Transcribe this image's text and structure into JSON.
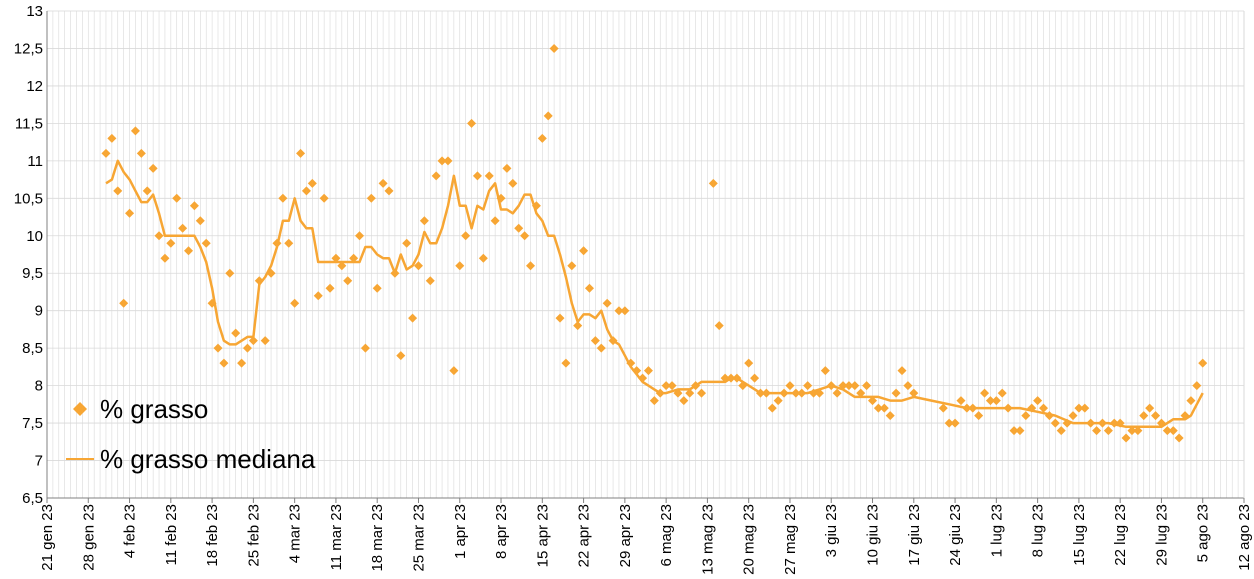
{
  "chart_data": {
    "type": "scatter",
    "title": "",
    "xlabel": "",
    "ylabel": "",
    "ylim": [
      6.5,
      13
    ],
    "xlim": [
      "2023-01-21",
      "2023-08-12"
    ],
    "grid": true,
    "legend_position": "bottom-left",
    "colors": {
      "series": "#F7A634",
      "grid": "#D9D9D9",
      "axis": "#808080"
    },
    "y_ticks": [
      "6,5",
      "7",
      "7,5",
      "8",
      "8,5",
      "9",
      "9,5",
      "10",
      "10,5",
      "11",
      "11,5",
      "12",
      "12,5",
      "13"
    ],
    "x_ticks": [
      {
        "date": "2023-01-21",
        "label": "21 gen 23"
      },
      {
        "date": "2023-01-28",
        "label": "28 gen 23"
      },
      {
        "date": "2023-02-04",
        "label": "4 feb 23"
      },
      {
        "date": "2023-02-11",
        "label": "11 feb 23"
      },
      {
        "date": "2023-02-18",
        "label": "18 feb 23"
      },
      {
        "date": "2023-02-25",
        "label": "25 feb 23"
      },
      {
        "date": "2023-03-04",
        "label": "4 mar 23"
      },
      {
        "date": "2023-03-11",
        "label": "11 mar 23"
      },
      {
        "date": "2023-03-18",
        "label": "18 mar 23"
      },
      {
        "date": "2023-03-25",
        "label": "25 mar 23"
      },
      {
        "date": "2023-04-01",
        "label": "1 apr 23"
      },
      {
        "date": "2023-04-08",
        "label": "8 apr 23"
      },
      {
        "date": "2023-04-15",
        "label": "15 apr 23"
      },
      {
        "date": "2023-04-22",
        "label": "22 apr 23"
      },
      {
        "date": "2023-04-29",
        "label": "29 apr 23"
      },
      {
        "date": "2023-05-06",
        "label": "6 mag 23"
      },
      {
        "date": "2023-05-13",
        "label": "13 mag 23"
      },
      {
        "date": "2023-05-20",
        "label": "20 mag 23"
      },
      {
        "date": "2023-05-27",
        "label": "27 mag 23"
      },
      {
        "date": "2023-06-03",
        "label": "3 giu 23"
      },
      {
        "date": "2023-06-10",
        "label": "10 giu 23"
      },
      {
        "date": "2023-06-17",
        "label": "17 giu 23"
      },
      {
        "date": "2023-06-24",
        "label": "24 giu 23"
      },
      {
        "date": "2023-07-01",
        "label": "1 lug 23"
      },
      {
        "date": "2023-07-08",
        "label": "8 lug 23"
      },
      {
        "date": "2023-07-15",
        "label": "15 lug 23"
      },
      {
        "date": "2023-07-22",
        "label": "22 lug 23"
      },
      {
        "date": "2023-07-29",
        "label": "29 lug 23"
      },
      {
        "date": "2023-08-05",
        "label": "5 ago 23"
      },
      {
        "date": "2023-08-12",
        "label": "12 ago 23"
      }
    ],
    "series": [
      {
        "name": "% grasso",
        "type": "scatter",
        "marker": "diamond",
        "x": [
          "2023-01-31",
          "2023-02-01",
          "2023-02-02",
          "2023-02-03",
          "2023-02-04",
          "2023-02-05",
          "2023-02-06",
          "2023-02-07",
          "2023-02-08",
          "2023-02-09",
          "2023-02-10",
          "2023-02-11",
          "2023-02-12",
          "2023-02-13",
          "2023-02-14",
          "2023-02-15",
          "2023-02-16",
          "2023-02-17",
          "2023-02-18",
          "2023-02-19",
          "2023-02-20",
          "2023-02-21",
          "2023-02-22",
          "2023-02-23",
          "2023-02-24",
          "2023-02-25",
          "2023-02-26",
          "2023-02-27",
          "2023-02-28",
          "2023-03-01",
          "2023-03-02",
          "2023-03-03",
          "2023-03-04",
          "2023-03-05",
          "2023-03-06",
          "2023-03-07",
          "2023-03-08",
          "2023-03-09",
          "2023-03-10",
          "2023-03-11",
          "2023-03-12",
          "2023-03-13",
          "2023-03-14",
          "2023-03-15",
          "2023-03-16",
          "2023-03-17",
          "2023-03-18",
          "2023-03-19",
          "2023-03-20",
          "2023-03-21",
          "2023-03-22",
          "2023-03-23",
          "2023-03-24",
          "2023-03-25",
          "2023-03-26",
          "2023-03-27",
          "2023-03-28",
          "2023-03-29",
          "2023-03-30",
          "2023-03-31",
          "2023-04-01",
          "2023-04-02",
          "2023-04-03",
          "2023-04-04",
          "2023-04-05",
          "2023-04-06",
          "2023-04-07",
          "2023-04-08",
          "2023-04-09",
          "2023-04-10",
          "2023-04-11",
          "2023-04-12",
          "2023-04-13",
          "2023-04-14",
          "2023-04-15",
          "2023-04-16",
          "2023-04-17",
          "2023-04-18",
          "2023-04-19",
          "2023-04-20",
          "2023-04-21",
          "2023-04-22",
          "2023-04-23",
          "2023-04-24",
          "2023-04-25",
          "2023-04-26",
          "2023-04-27",
          "2023-04-28",
          "2023-04-29",
          "2023-04-30",
          "2023-05-01",
          "2023-05-02",
          "2023-05-03",
          "2023-05-04",
          "2023-05-05",
          "2023-05-06",
          "2023-05-07",
          "2023-05-08",
          "2023-05-09",
          "2023-05-10",
          "2023-05-11",
          "2023-05-12",
          "2023-05-14",
          "2023-05-15",
          "2023-05-16",
          "2023-05-17",
          "2023-05-18",
          "2023-05-19",
          "2023-05-20",
          "2023-05-21",
          "2023-05-22",
          "2023-05-23",
          "2023-05-24",
          "2023-05-25",
          "2023-05-26",
          "2023-05-27",
          "2023-05-28",
          "2023-05-29",
          "2023-05-30",
          "2023-05-31",
          "2023-06-01",
          "2023-06-02",
          "2023-06-03",
          "2023-06-04",
          "2023-06-05",
          "2023-06-06",
          "2023-06-07",
          "2023-06-08",
          "2023-06-09",
          "2023-06-10",
          "2023-06-11",
          "2023-06-12",
          "2023-06-13",
          "2023-06-14",
          "2023-06-15",
          "2023-06-16",
          "2023-06-17",
          "2023-06-22",
          "2023-06-23",
          "2023-06-24",
          "2023-06-25",
          "2023-06-26",
          "2023-06-27",
          "2023-06-28",
          "2023-06-29",
          "2023-06-30",
          "2023-07-01",
          "2023-07-02",
          "2023-07-03",
          "2023-07-04",
          "2023-07-05",
          "2023-07-06",
          "2023-07-07",
          "2023-07-08",
          "2023-07-09",
          "2023-07-10",
          "2023-07-11",
          "2023-07-12",
          "2023-07-13",
          "2023-07-14",
          "2023-07-15",
          "2023-07-16",
          "2023-07-17",
          "2023-07-18",
          "2023-07-19",
          "2023-07-20",
          "2023-07-21",
          "2023-07-22",
          "2023-07-23",
          "2023-07-24",
          "2023-07-25",
          "2023-07-26",
          "2023-07-27",
          "2023-07-28",
          "2023-07-29",
          "2023-07-30",
          "2023-07-31",
          "2023-08-01",
          "2023-08-02",
          "2023-08-03",
          "2023-08-04",
          "2023-08-05"
        ],
        "y": [
          11.1,
          11.3,
          10.6,
          9.1,
          10.3,
          11.4,
          11.1,
          10.6,
          10.9,
          10.0,
          9.7,
          9.9,
          10.5,
          10.1,
          9.8,
          10.4,
          10.2,
          9.9,
          9.1,
          8.5,
          8.3,
          9.5,
          8.7,
          8.3,
          8.5,
          8.6,
          9.4,
          8.6,
          9.5,
          9.9,
          10.5,
          9.9,
          9.1,
          11.1,
          10.6,
          10.7,
          9.2,
          10.5,
          9.3,
          9.7,
          9.6,
          9.4,
          9.7,
          10.0,
          8.5,
          10.5,
          9.3,
          10.7,
          10.6,
          9.5,
          8.4,
          9.9,
          8.9,
          9.6,
          10.2,
          9.4,
          10.8,
          11.0,
          11.0,
          8.2,
          9.6,
          10.0,
          11.5,
          10.8,
          9.7,
          10.8,
          10.2,
          10.5,
          10.9,
          10.7,
          10.1,
          10.0,
          9.6,
          10.4,
          11.3,
          11.6,
          12.5,
          8.9,
          8.3,
          9.6,
          8.8,
          9.8,
          9.3,
          8.6,
          8.5,
          9.1,
          8.6,
          9.0,
          9.0,
          8.3,
          8.2,
          8.1,
          8.2,
          7.8,
          7.9,
          8.0,
          8.0,
          7.9,
          7.8,
          7.9,
          8.0,
          7.9,
          10.7,
          8.8,
          8.1,
          8.1,
          8.1,
          8.0,
          8.3,
          8.1,
          7.9,
          7.9,
          7.7,
          7.8,
          7.9,
          8.0,
          7.9,
          7.9,
          8.0,
          7.9,
          7.9,
          8.2,
          8.0,
          7.9,
          8.0,
          8.0,
          8.0,
          7.9,
          8.0,
          7.8,
          7.7,
          7.7,
          7.6,
          7.9,
          8.2,
          8.0,
          7.9,
          7.7,
          7.5,
          7.5,
          7.8,
          7.7,
          7.7,
          7.6,
          7.9,
          7.8,
          7.8,
          7.9,
          7.7,
          7.4,
          7.4,
          7.6,
          7.7,
          7.8,
          7.7,
          7.6,
          7.5,
          7.4,
          7.5,
          7.6,
          7.7,
          7.7,
          7.5,
          7.4,
          7.5,
          7.4,
          7.5,
          7.5,
          7.3,
          7.4,
          7.4,
          7.6,
          7.7,
          7.6,
          7.5,
          7.4,
          7.4,
          7.3,
          7.6,
          7.8,
          8.0,
          8.3
        ]
      },
      {
        "name": "% grasso mediana",
        "type": "line",
        "x": [
          "2023-01-31",
          "2023-02-01",
          "2023-02-02",
          "2023-02-03",
          "2023-02-04",
          "2023-02-05",
          "2023-02-06",
          "2023-02-07",
          "2023-02-08",
          "2023-02-09",
          "2023-02-10",
          "2023-02-11",
          "2023-02-12",
          "2023-02-13",
          "2023-02-14",
          "2023-02-15",
          "2023-02-16",
          "2023-02-17",
          "2023-02-18",
          "2023-02-19",
          "2023-02-20",
          "2023-02-21",
          "2023-02-22",
          "2023-02-23",
          "2023-02-24",
          "2023-02-25",
          "2023-02-26",
          "2023-02-27",
          "2023-02-28",
          "2023-03-01",
          "2023-03-02",
          "2023-03-03",
          "2023-03-04",
          "2023-03-05",
          "2023-03-06",
          "2023-03-07",
          "2023-03-08",
          "2023-03-09",
          "2023-03-10",
          "2023-03-11",
          "2023-03-12",
          "2023-03-13",
          "2023-03-14",
          "2023-03-15",
          "2023-03-16",
          "2023-03-17",
          "2023-03-18",
          "2023-03-19",
          "2023-03-20",
          "2023-03-21",
          "2023-03-22",
          "2023-03-23",
          "2023-03-24",
          "2023-03-25",
          "2023-03-26",
          "2023-03-27",
          "2023-03-28",
          "2023-03-29",
          "2023-03-30",
          "2023-03-31",
          "2023-04-01",
          "2023-04-02",
          "2023-04-03",
          "2023-04-04",
          "2023-04-05",
          "2023-04-06",
          "2023-04-07",
          "2023-04-08",
          "2023-04-09",
          "2023-04-10",
          "2023-04-11",
          "2023-04-12",
          "2023-04-13",
          "2023-04-14",
          "2023-04-15",
          "2023-04-16",
          "2023-04-17",
          "2023-04-18",
          "2023-04-19",
          "2023-04-20",
          "2023-04-21",
          "2023-04-22",
          "2023-04-23",
          "2023-04-24",
          "2023-04-25",
          "2023-04-26",
          "2023-04-27",
          "2023-04-28",
          "2023-04-29",
          "2023-04-30",
          "2023-05-01",
          "2023-05-02",
          "2023-05-03",
          "2023-05-04",
          "2023-05-05",
          "2023-05-06",
          "2023-05-08",
          "2023-05-10",
          "2023-05-12",
          "2023-05-14",
          "2023-05-16",
          "2023-05-17",
          "2023-05-18",
          "2023-05-19",
          "2023-05-20",
          "2023-05-22",
          "2023-05-24",
          "2023-05-26",
          "2023-05-28",
          "2023-05-30",
          "2023-06-01",
          "2023-06-03",
          "2023-06-05",
          "2023-06-07",
          "2023-06-09",
          "2023-06-11",
          "2023-06-13",
          "2023-06-15",
          "2023-06-17",
          "2023-06-20",
          "2023-06-23",
          "2023-06-26",
          "2023-06-29",
          "2023-07-02",
          "2023-07-05",
          "2023-07-08",
          "2023-07-11",
          "2023-07-14",
          "2023-07-17",
          "2023-07-20",
          "2023-07-23",
          "2023-07-26",
          "2023-07-29",
          "2023-07-31",
          "2023-08-02",
          "2023-08-03",
          "2023-08-05"
        ],
        "y": [
          10.7,
          10.75,
          11.0,
          10.85,
          10.75,
          10.6,
          10.45,
          10.45,
          10.55,
          10.3,
          10.0,
          10.0,
          10.0,
          10.0,
          10.0,
          10.0,
          9.85,
          9.65,
          9.3,
          8.85,
          8.6,
          8.55,
          8.55,
          8.6,
          8.65,
          8.65,
          9.35,
          9.45,
          9.6,
          9.85,
          10.2,
          10.2,
          10.5,
          10.2,
          10.1,
          10.1,
          9.65,
          9.65,
          9.65,
          9.65,
          9.65,
          9.65,
          9.65,
          9.65,
          9.85,
          9.85,
          9.75,
          9.7,
          9.7,
          9.5,
          9.75,
          9.55,
          9.6,
          9.75,
          10.05,
          9.9,
          9.9,
          10.1,
          10.4,
          10.8,
          10.4,
          10.4,
          10.1,
          10.4,
          10.35,
          10.6,
          10.7,
          10.35,
          10.35,
          10.3,
          10.4,
          10.55,
          10.55,
          10.3,
          10.2,
          10.0,
          10.0,
          9.75,
          9.45,
          9.1,
          8.85,
          8.95,
          8.95,
          8.9,
          9.0,
          8.75,
          8.6,
          8.55,
          8.4,
          8.25,
          8.15,
          8.05,
          8.0,
          7.95,
          7.9,
          7.9,
          7.95,
          7.95,
          8.05,
          8.05,
          8.05,
          8.1,
          8.1,
          8.05,
          8.0,
          7.9,
          7.9,
          7.9,
          7.9,
          7.9,
          7.95,
          8.0,
          7.95,
          7.85,
          7.85,
          7.85,
          7.8,
          7.8,
          7.85,
          7.8,
          7.75,
          7.7,
          7.7,
          7.7,
          7.7,
          7.65,
          7.6,
          7.5,
          7.5,
          7.5,
          7.45,
          7.45,
          7.45,
          7.55,
          7.55,
          7.6,
          7.9
        ]
      }
    ]
  }
}
